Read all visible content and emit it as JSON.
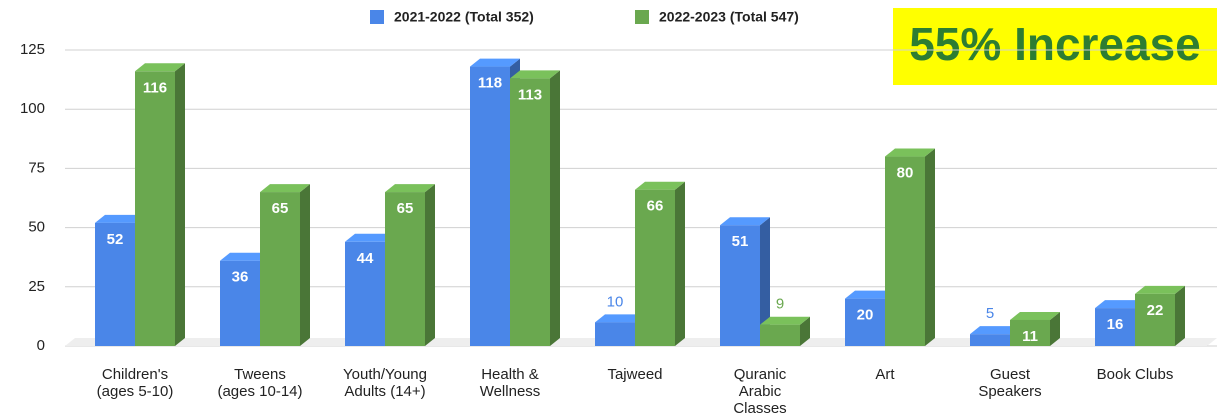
{
  "chart_data": {
    "type": "bar3d",
    "categories": [
      [
        "Children's",
        "(ages 5-10)"
      ],
      [
        "Tweens",
        "(ages 10-14)"
      ],
      [
        "Youth/Young",
        "Adults (14+)"
      ],
      [
        "Health &",
        "Wellness"
      ],
      [
        "Tajweed"
      ],
      [
        "Quranic",
        "Arabic",
        "Classes"
      ],
      [
        "Art"
      ],
      [
        "Guest",
        "Speakers"
      ],
      [
        "Book Clubs"
      ]
    ],
    "series": [
      {
        "name": "2021-2022 (Total 352)",
        "color": "#4a86e8",
        "values": [
          52,
          36,
          44,
          118,
          10,
          51,
          20,
          5,
          16
        ]
      },
      {
        "name": "2022-2023 (Total 547)",
        "color": "#6aa84f",
        "values": [
          116,
          65,
          65,
          113,
          66,
          9,
          80,
          11,
          22
        ]
      }
    ],
    "ylim": [
      0,
      125
    ],
    "yticks": [
      0,
      25,
      50,
      75,
      100,
      125
    ],
    "grid": true,
    "annotation": "55% Increase"
  }
}
